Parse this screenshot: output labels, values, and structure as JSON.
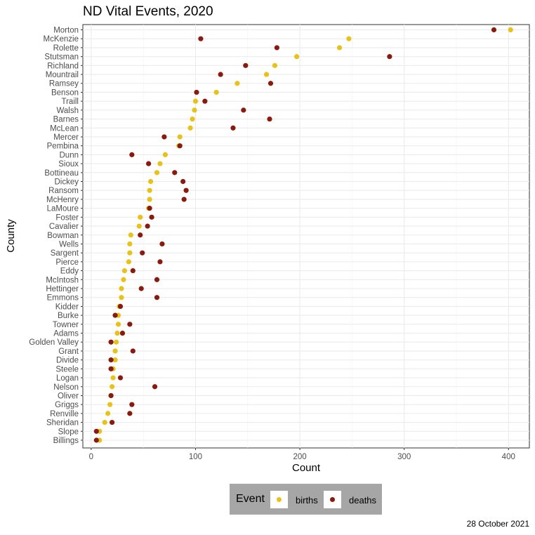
{
  "chart_data": {
    "type": "scatter",
    "title": "ND Vital Events, 2020",
    "xlabel": "Count",
    "ylabel": "County",
    "xlim": [
      -8,
      420
    ],
    "xticks": [
      0,
      100,
      200,
      300,
      400
    ],
    "xtick_labels": [
      "0",
      "100",
      "200",
      "300",
      "400"
    ],
    "grid": true,
    "legend_title": "Event",
    "legend_position": "bottom",
    "categories": [
      "Morton",
      "McKenzie",
      "Rolette",
      "Stutsman",
      "Richland",
      "Mountrail",
      "Ramsey",
      "Benson",
      "Traill",
      "Walsh",
      "Barnes",
      "McLean",
      "Mercer",
      "Pembina",
      "Dunn",
      "Sioux",
      "Bottineau",
      "Dickey",
      "Ransom",
      "McHenry",
      "LaMoure",
      "Foster",
      "Cavalier",
      "Bowman",
      "Wells",
      "Sargent",
      "Pierce",
      "Eddy",
      "McIntosh",
      "Hettinger",
      "Emmons",
      "Kidder",
      "Burke",
      "Towner",
      "Adams",
      "Golden Valley",
      "Grant",
      "Divide",
      "Steele",
      "Logan",
      "Nelson",
      "Oliver",
      "Griggs",
      "Renville",
      "Sheridan",
      "Slope",
      "Billings"
    ],
    "series": [
      {
        "name": "births",
        "color": "#E8C21A",
        "values": [
          402,
          247,
          238,
          197,
          176,
          168,
          140,
          120,
          100,
          99,
          97,
          95,
          85,
          84,
          71,
          66,
          63,
          57,
          56,
          56,
          55,
          47,
          46,
          38,
          37,
          37,
          36,
          32,
          31,
          29,
          29,
          27,
          26,
          26,
          25,
          24,
          23,
          23,
          21,
          21,
          20,
          19,
          18,
          16,
          13,
          8,
          8
        ]
      },
      {
        "name": "deaths",
        "color": "#8B1A0E",
        "values": [
          386,
          105,
          178,
          286,
          148,
          124,
          172,
          101,
          109,
          146,
          171,
          136,
          70,
          85,
          39,
          55,
          80,
          88,
          91,
          89,
          56,
          58,
          54,
          47,
          68,
          49,
          66,
          40,
          63,
          48,
          63,
          28,
          23,
          37,
          30,
          19,
          40,
          19,
          19,
          28,
          61,
          19,
          39,
          37,
          20,
          5,
          5
        ]
      }
    ]
  },
  "caption": "28 October 2021"
}
